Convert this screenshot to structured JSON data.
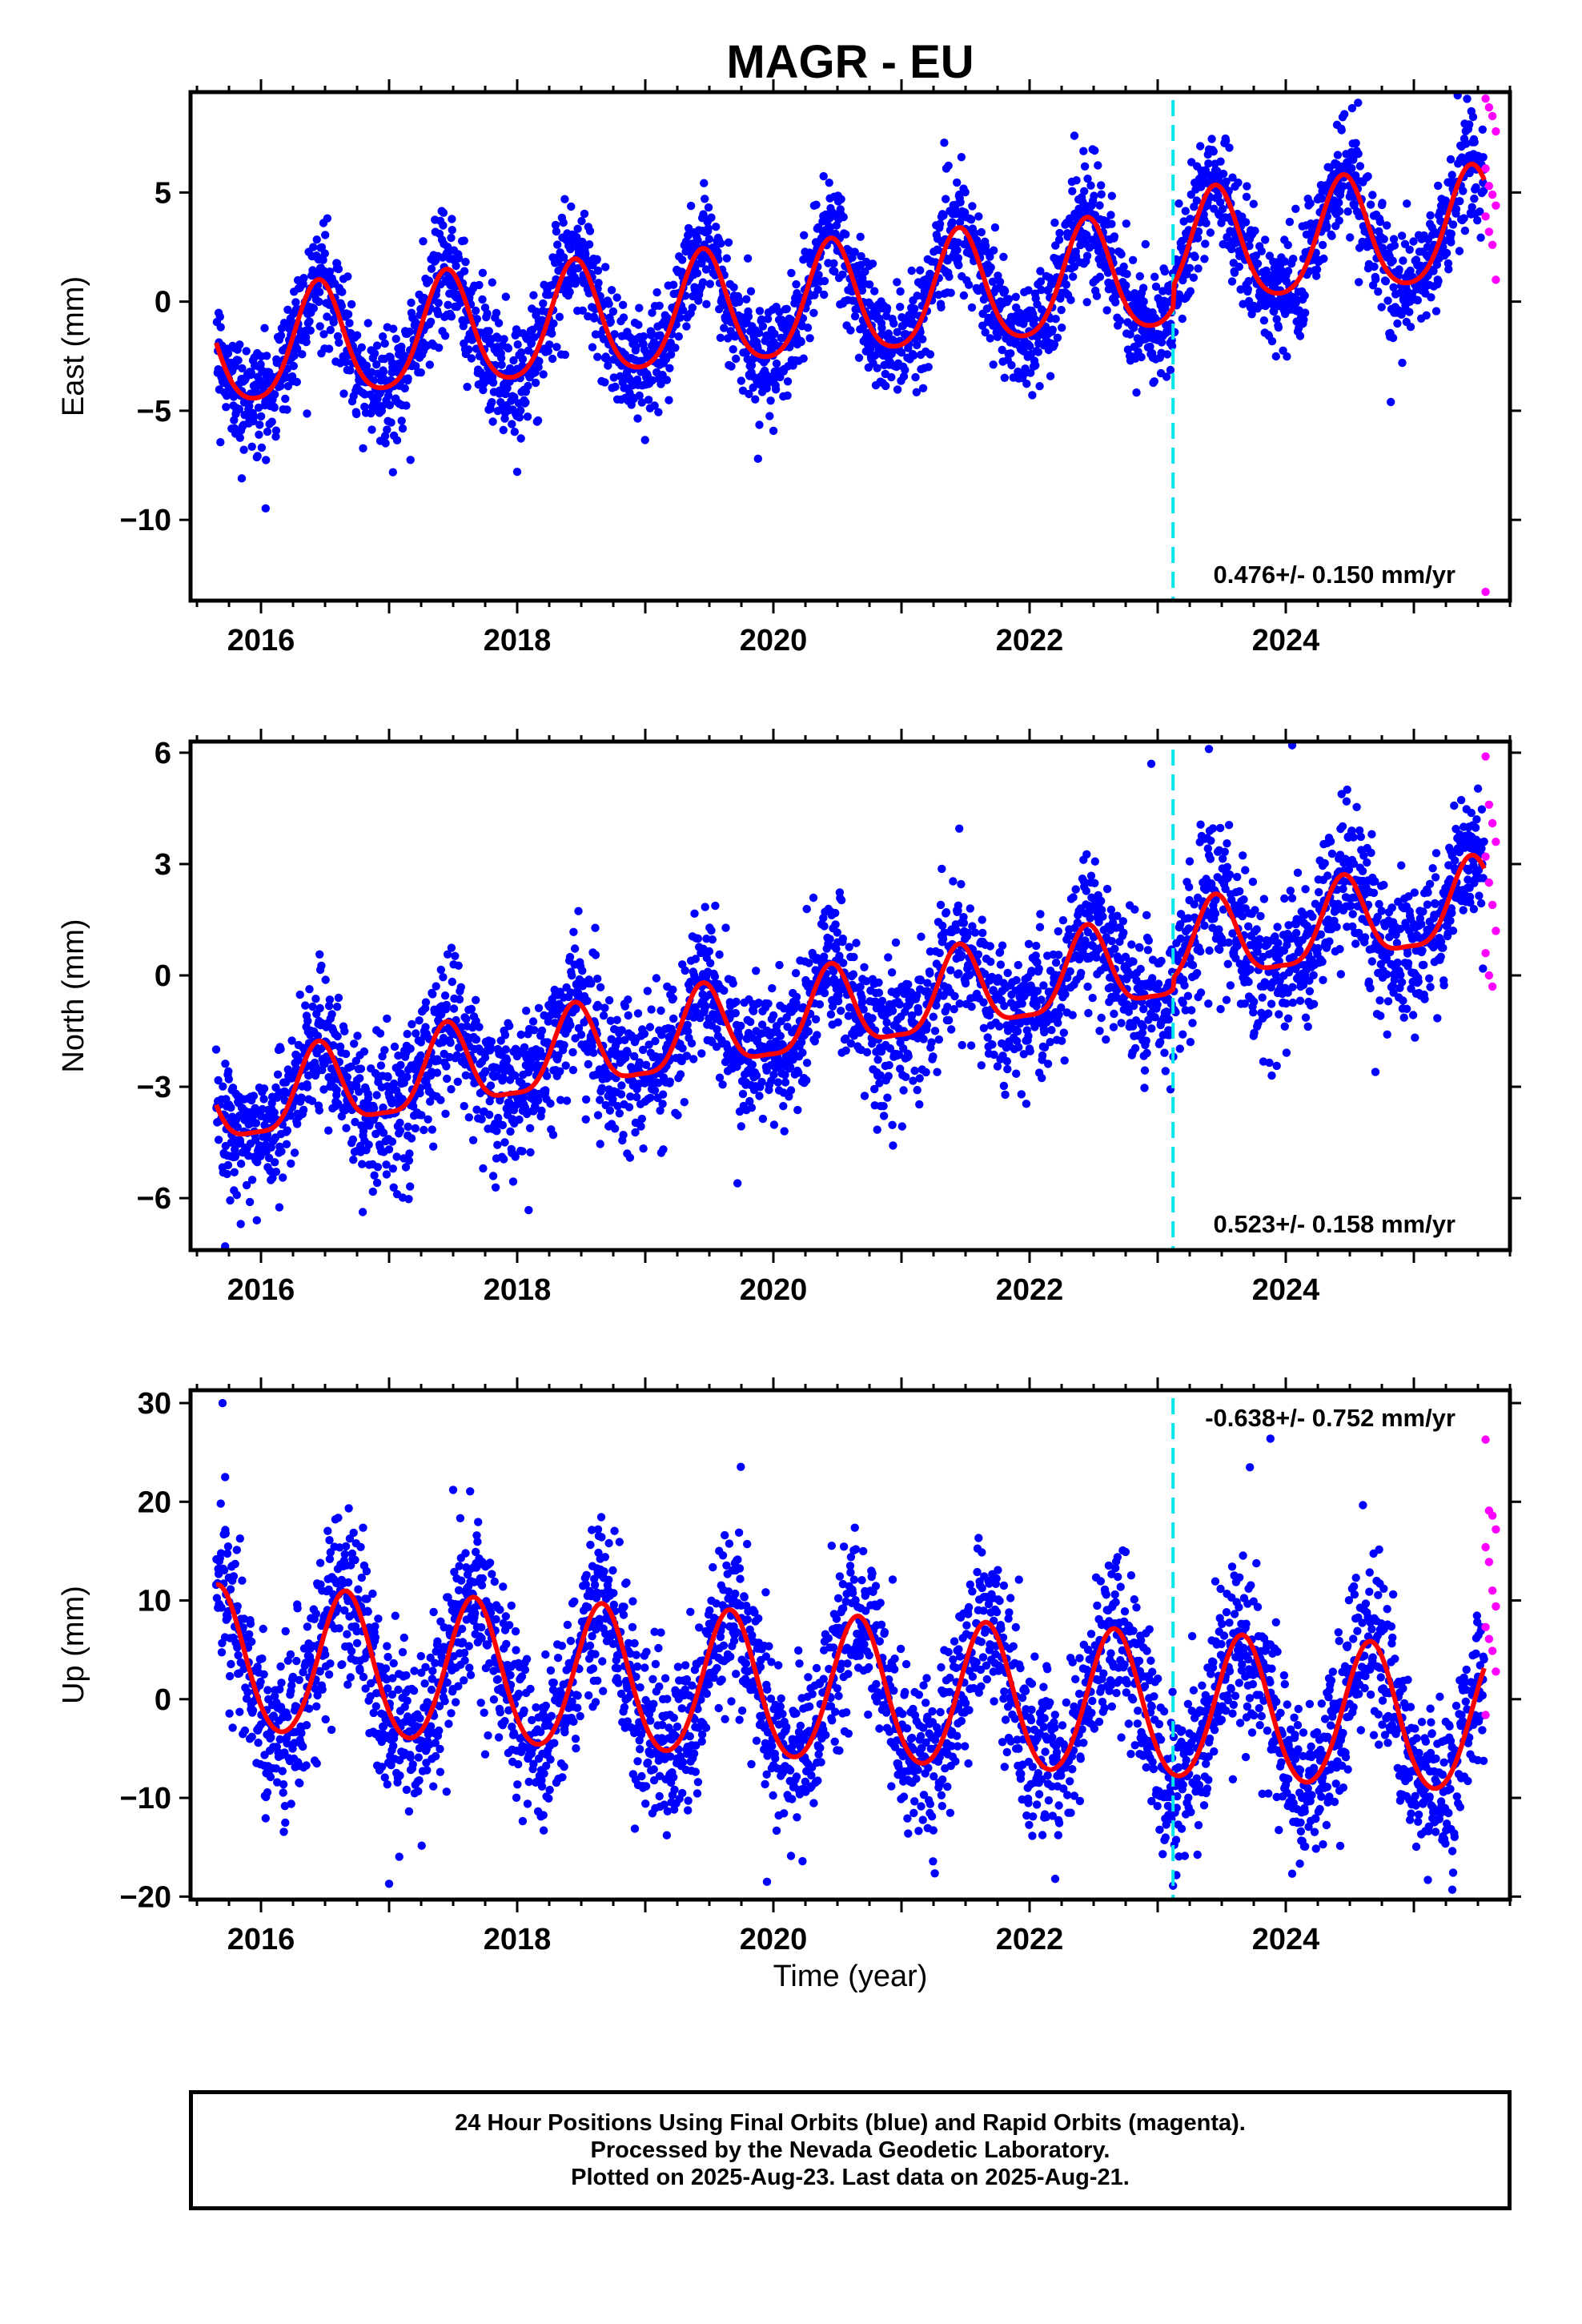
{
  "title": "MAGR - EU",
  "xlabel": "Time (year)",
  "footer": {
    "line1": "24 Hour Positions Using Final Orbits (blue) and Rapid Orbits (magenta).",
    "line2": "Processed by the Nevada Geodetic Laboratory.",
    "line3": "Plotted on 2025-Aug-23. Last data on 2025-Aug-21."
  },
  "colors": {
    "final_orbits": "#0000ff",
    "rapid_orbits": "#ff00ff",
    "model_fit": "#ff0000",
    "equipment_change": "#00e5ee"
  },
  "chart_data": [
    {
      "type": "scatter",
      "component": "east",
      "ylabel": "East (mm)",
      "rate_label": "0.476+/- 0.150 mm/yr",
      "xlim": [
        2015.45,
        2025.75
      ],
      "ylim": [
        -13.7,
        9.6
      ],
      "xticks": [
        2016,
        2018,
        2020,
        2022,
        2024
      ],
      "yticks": [
        -10,
        -5,
        0,
        5
      ],
      "yticklabels": [
        "−10",
        "−5",
        "0",
        "5"
      ],
      "grid": false,
      "data_start": 2015.65,
      "data_end": 2025.55,
      "rapid_start": 2025.56,
      "rapid_end": 2025.64,
      "equipment_change": 2023.12,
      "fit": {
        "offset_at_2016": -2.2,
        "rate": 0.476,
        "annual_amplitude": 2.6,
        "annual_peak_phase": 0.45,
        "semiannual_amplitude": 0.4,
        "step_at_equipment_change": 1.0
      },
      "scatter_sigma": 1.3,
      "extreme_points": [
        {
          "x": 2015.85,
          "y": -8.1
        },
        {
          "x": 2017.4,
          "y": 3.7
        },
        {
          "x": 2018.0,
          "y": -7.8
        },
        {
          "x": 2021.35,
          "y": 6.1
        },
        {
          "x": 2022.35,
          "y": 7.6
        },
        {
          "x": 2024.4,
          "y": 8.1
        },
        {
          "x": 2024.82,
          "y": -4.6
        },
        {
          "x": 2019.88,
          "y": -7.2
        }
      ],
      "rapid_points": [
        9.3,
        8.9,
        8.5,
        7.8,
        6.1,
        5.3,
        4.9,
        4.4,
        3.9,
        3.2,
        2.6,
        1.0,
        -13.3
      ]
    },
    {
      "type": "scatter",
      "component": "north",
      "ylabel": "North (mm)",
      "rate_label": "0.523+/- 0.158 mm/yr",
      "xlim": [
        2015.45,
        2025.75
      ],
      "ylim": [
        -7.4,
        6.3
      ],
      "xticks": [
        2016,
        2018,
        2020,
        2022,
        2024
      ],
      "yticks": [
        -6,
        -3,
        0,
        3,
        6
      ],
      "yticklabels": [
        "−6",
        "−3",
        "0",
        "3",
        "6"
      ],
      "grid": false,
      "data_start": 2015.65,
      "data_end": 2025.55,
      "rapid_start": 2025.56,
      "rapid_end": 2025.64,
      "equipment_change": 2023.12,
      "fit": {
        "offset_at_2016": -3.4,
        "rate": 0.523,
        "annual_amplitude": 1.1,
        "annual_peak_phase": 0.45,
        "semiannual_amplitude": 0.3,
        "step_at_equipment_change": 0.3
      },
      "scatter_sigma": 0.95,
      "extreme_points": [
        {
          "x": 2015.72,
          "y": -7.3
        },
        {
          "x": 2022.95,
          "y": 5.7
        },
        {
          "x": 2023.4,
          "y": 6.1
        },
        {
          "x": 2024.05,
          "y": 6.2
        },
        {
          "x": 2019.72,
          "y": -5.6
        },
        {
          "x": 2024.7,
          "y": -2.6
        }
      ],
      "rapid_points": [
        5.9,
        4.6,
        4.1,
        3.6,
        3.2,
        2.5,
        1.9,
        1.2,
        0.6,
        0.0,
        -0.3
      ]
    },
    {
      "type": "scatter",
      "component": "up",
      "ylabel": "Up (mm)",
      "rate_label": "-0.638+/- 0.752 mm/yr",
      "xlim": [
        2015.45,
        2025.75
      ],
      "ylim": [
        -20.3,
        31.3
      ],
      "xticks": [
        2016,
        2018,
        2020,
        2022,
        2024
      ],
      "yticks": [
        -20,
        -10,
        0,
        10,
        20,
        30
      ],
      "yticklabels": [
        "−20",
        "−10",
        "0",
        "10",
        "20",
        "30"
      ],
      "grid": false,
      "data_start": 2015.65,
      "data_end": 2025.55,
      "rapid_start": 2025.56,
      "rapid_end": 2025.64,
      "equipment_change": 2023.12,
      "fit": {
        "offset_at_2016": 3.5,
        "rate": -0.638,
        "annual_amplitude": 7.3,
        "annual_peak_phase": 0.66,
        "semiannual_amplitude": 0.6,
        "step_at_equipment_change": 0.0
      },
      "scatter_sigma": 4.2,
      "extreme_points": [
        {
          "x": 2015.7,
          "y": 30.0
        },
        {
          "x": 2015.72,
          "y": 22.5
        },
        {
          "x": 2017.5,
          "y": 21.2
        },
        {
          "x": 2023.88,
          "y": 26.4
        },
        {
          "x": 2017.0,
          "y": -18.7
        },
        {
          "x": 2019.95,
          "y": -18.5
        },
        {
          "x": 2022.2,
          "y": -18.2
        },
        {
          "x": 2023.12,
          "y": -18.9
        },
        {
          "x": 2025.3,
          "y": -19.3
        },
        {
          "x": 2023.72,
          "y": 23.5
        }
      ],
      "rapid_points": [
        26.3,
        19.1,
        18.6,
        17.2,
        15.4,
        13.9,
        11.0,
        9.4,
        7.3,
        6.1,
        4.9,
        2.8,
        -1.6
      ]
    }
  ]
}
